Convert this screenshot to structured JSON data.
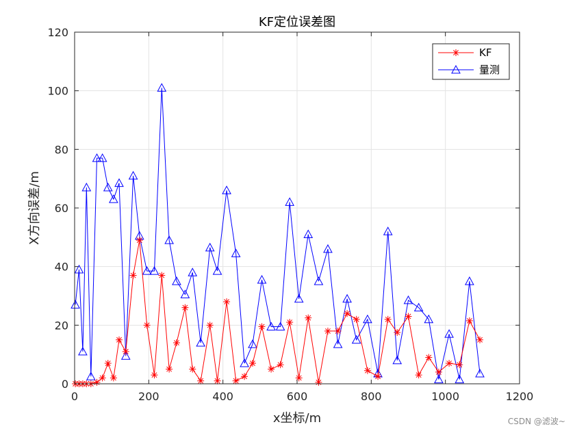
{
  "chart_data": {
    "type": "line",
    "title": "KF定位误差图",
    "xlabel": "x坐标/m",
    "ylabel": "X方向误差/m",
    "xlim": [
      0,
      1200
    ],
    "ylim": [
      0,
      120
    ],
    "xticks": [
      0,
      200,
      400,
      600,
      800,
      1000,
      1200
    ],
    "yticks": [
      0,
      20,
      40,
      60,
      80,
      100,
      120
    ],
    "grid": true,
    "legend_position": "top-right",
    "x": [
      2,
      12,
      22,
      32,
      44,
      60,
      75,
      90,
      105,
      120,
      138,
      158,
      175,
      195,
      215,
      235,
      255,
      275,
      298,
      318,
      340,
      365,
      385,
      410,
      435,
      458,
      480,
      505,
      530,
      555,
      580,
      605,
      630,
      658,
      683,
      710,
      735,
      760,
      790,
      818,
      845,
      870,
      900,
      928,
      955,
      982,
      1010,
      1038,
      1065,
      1093
    ],
    "series": [
      {
        "name": "KF",
        "color": "#ff0000",
        "marker": "asterisk",
        "values": [
          0,
          0,
          0,
          0,
          0,
          0.5,
          2,
          7,
          2,
          15,
          11,
          37,
          49,
          20,
          3,
          37,
          5,
          14,
          26,
          5,
          1,
          20,
          1,
          28,
          1,
          2.5,
          7,
          19.5,
          5,
          6.5,
          21,
          2,
          22.5,
          0.5,
          18,
          18,
          24,
          22,
          4.5,
          2.5,
          22,
          17.5,
          23,
          3,
          9,
          4,
          7,
          6.5,
          21.5,
          15
        ]
      },
      {
        "name": "量测",
        "color": "#0000ff",
        "marker": "triangle",
        "values": [
          27,
          39,
          11,
          67,
          2.5,
          77,
          77,
          67,
          63,
          68.5,
          9.5,
          71,
          50.5,
          38.5,
          38.5,
          101,
          49,
          35,
          30.5,
          38,
          14,
          46.5,
          38.5,
          66,
          44.5,
          7,
          13.5,
          35.5,
          19.5,
          19.5,
          62,
          29,
          51,
          35,
          46,
          13.5,
          29,
          15,
          22,
          3.5,
          52,
          8,
          28.5,
          26,
          22,
          1.5,
          17,
          1.5,
          35,
          3.5
        ]
      }
    ]
  },
  "watermark": "CSDN @滤波~"
}
